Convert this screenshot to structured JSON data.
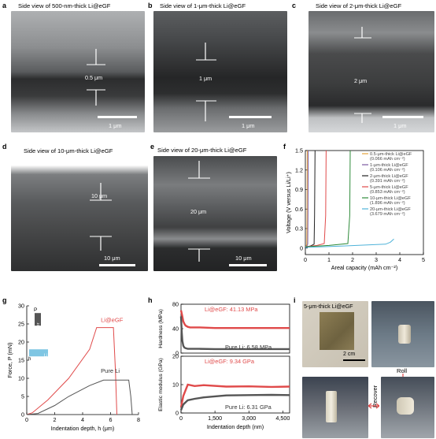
{
  "panels": {
    "a": {
      "letter": "a",
      "title": "Side view of 500-nm-thick Li@eGF",
      "thickness": "0.5 μm",
      "scale": "1 μm"
    },
    "b": {
      "letter": "b",
      "title": "Side view of 1-μm-thick Li@eGF",
      "thickness": "1 μm",
      "scale": "1 μm"
    },
    "c": {
      "letter": "c",
      "title": "Side view of 2-μm-thick Li@eGF",
      "thickness": "2 μm",
      "scale": "1 μm"
    },
    "d": {
      "letter": "d",
      "title": "Side view of 10-μm-thick Li@eGF",
      "thickness": "10 μm",
      "scale": "10 μm"
    },
    "e": {
      "letter": "e",
      "title": "Side view of 20-μm-thick Li@eGF",
      "thickness": "20 μm",
      "scale": "10 μm"
    },
    "i": {
      "letter": "i",
      "title": "5-μm-thick Li@eGF",
      "scale": "2 cm",
      "roll": "Roll",
      "recover": "Recover"
    }
  },
  "chart_data": [
    {
      "panel": "f",
      "type": "line",
      "xlabel": "Areal capacity (mAh cm⁻²)",
      "ylabel": "Voltage (V versus Li/Li⁺)",
      "xlim": [
        0,
        5
      ],
      "ylim": [
        -0.1,
        1.5
      ],
      "xticks": [
        "0",
        "1",
        "2",
        "3",
        "4",
        "5"
      ],
      "yticks": [
        "0",
        "0.3",
        "0.6",
        "0.9",
        "1.2",
        "1.5"
      ],
      "series": [
        {
          "name": "0.5-μm-thick Li@eGF",
          "note": "(0.066 mAh cm⁻²)",
          "color": "#e6a23c",
          "x": [
            0,
            0.03,
            0.06,
            0.07,
            0.08
          ],
          "y": [
            0.02,
            0.03,
            0.06,
            0.5,
            1.5
          ]
        },
        {
          "name": "1-μm-thick Li@eGF",
          "note": "(0.106 mAh cm⁻²)",
          "color": "#7a5aa0",
          "x": [
            0,
            0.06,
            0.1,
            0.11,
            0.12
          ],
          "y": [
            0.02,
            0.03,
            0.06,
            0.5,
            1.5
          ]
        },
        {
          "name": "2-μm-thick Li@eGF",
          "note": "(0.391 mAh cm⁻²)",
          "color": "#222222",
          "x": [
            0,
            0.2,
            0.37,
            0.39,
            0.41
          ],
          "y": [
            0.02,
            0.03,
            0.06,
            0.5,
            1.5
          ]
        },
        {
          "name": "5-μm-thick Li@eGF",
          "note": "(0.853 mAh cm⁻²)",
          "color": "#e04a4a",
          "x": [
            0,
            0.5,
            0.8,
            0.86,
            0.88
          ],
          "y": [
            0.02,
            0.04,
            0.07,
            0.5,
            1.5
          ]
        },
        {
          "name": "10-μm-thick Li@eGF",
          "note": "(1.896 mAh cm⁻²)",
          "color": "#2e8b3a",
          "x": [
            0,
            1.0,
            1.8,
            1.88,
            1.9
          ],
          "y": [
            0.02,
            0.04,
            0.07,
            0.5,
            1.5
          ]
        },
        {
          "name": "20-μm-thick Li@eGF",
          "note": "(3.679 mAh cm⁻²)",
          "color": "#4fb3d9",
          "x": [
            0,
            1.5,
            3.4,
            3.6,
            3.75
          ],
          "y": [
            0.01,
            0.03,
            0.06,
            0.09,
            0.14
          ]
        }
      ]
    },
    {
      "panel": "g",
      "type": "line",
      "xlabel": "Indentation depth, h (μm)",
      "ylabel": "Force, P (mN)",
      "xlim": [
        0,
        8
      ],
      "ylim": [
        0,
        30
      ],
      "xticks": [
        "0",
        "2",
        "4",
        "6",
        "8"
      ],
      "yticks": [
        "0",
        "5",
        "10",
        "15",
        "20",
        "25",
        "30"
      ],
      "series": [
        {
          "name": "Li@eGF",
          "color": "#e04a4a",
          "x": [
            0,
            0.4,
            1.5,
            3,
            4.5,
            5,
            6.2,
            6.35,
            6.45
          ],
          "y": [
            0,
            0.5,
            4,
            10,
            18,
            24,
            24,
            12,
            0
          ]
        },
        {
          "name": "Pure Li",
          "color": "#555555",
          "x": [
            0,
            0.8,
            2,
            3,
            4.5,
            5.5,
            7.3,
            7.45,
            7.55
          ],
          "y": [
            0,
            0.3,
            2.5,
            5,
            8,
            9.5,
            9.5,
            5,
            0
          ]
        }
      ],
      "annotations": {
        "indenter": "Indenter",
        "p_label": "P",
        "h_label": "h",
        "sample": "Li"
      }
    },
    {
      "panel": "h_top",
      "type": "line",
      "ylabel": "Hardness (MPa)",
      "xlim": [
        0,
        4800
      ],
      "ylim": [
        0,
        80
      ],
      "yticks": [
        "0",
        "40",
        "80"
      ],
      "series": [
        {
          "name": "Li@eGF: 41.13 MPa",
          "color": "#e04a4a",
          "x": [
            0,
            30,
            60,
            100,
            150,
            200,
            300,
            400,
            800,
            1500,
            3000,
            4800
          ],
          "y": [
            70,
            65,
            60,
            52,
            48,
            45,
            43,
            42,
            42,
            41,
            41,
            41
          ]
        },
        {
          "name": "Pure Li: 6.58 MPa",
          "color": "#555555",
          "x": [
            0,
            30,
            60,
            100,
            150,
            200,
            300,
            400,
            800,
            1500,
            3000,
            4800
          ],
          "y": [
            60,
            35,
            20,
            12,
            9,
            8,
            7,
            7,
            7,
            6.6,
            6.6,
            6.6
          ]
        }
      ]
    },
    {
      "panel": "h_bottom",
      "type": "line",
      "xlabel": "Indentation depth (nm)",
      "ylabel": "Elastic modulus (GPa)",
      "xlim": [
        0,
        4800
      ],
      "ylim": [
        0,
        20
      ],
      "xticks": [
        "0",
        "1,500",
        "3,000",
        "4,500"
      ],
      "yticks": [
        "0",
        "10",
        "20"
      ],
      "series": [
        {
          "name": "Li@eGF: 9.34 GPa",
          "color": "#e04a4a",
          "x": [
            0,
            100,
            300,
            600,
            1000,
            2000,
            3000,
            4000,
            4800
          ],
          "y": [
            2,
            6,
            10,
            9.5,
            9.8,
            9.3,
            9.4,
            9.2,
            9.3
          ]
        },
        {
          "name": "Pure Li: 6.31 GPa",
          "color": "#555555",
          "x": [
            0,
            100,
            300,
            600,
            1000,
            2000,
            3000,
            4000,
            4800
          ],
          "y": [
            1,
            3,
            4.5,
            5,
            5.5,
            6.2,
            6.3,
            6.4,
            6.3
          ]
        }
      ]
    }
  ],
  "chart_panel_letters": {
    "f": "f",
    "g": "g",
    "h": "h"
  }
}
